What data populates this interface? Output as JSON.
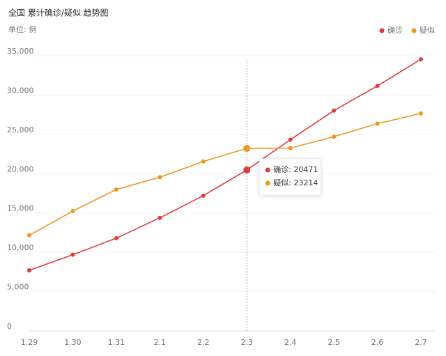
{
  "chart_data": {
    "type": "line",
    "title": "全国 累计确诊/疑似 趋势图",
    "unit_label": "单位: 例",
    "categories": [
      "1.29",
      "1.30",
      "1.31",
      "2.1",
      "2.2",
      "2.3",
      "2.4",
      "2.5",
      "2.6",
      "2.7"
    ],
    "series": [
      {
        "name": "确诊",
        "color": "#e03a3a",
        "values": [
          7711,
          9692,
          11791,
          14380,
          17205,
          20471,
          24324,
          28018,
          31161,
          34546
        ]
      },
      {
        "name": "疑似",
        "color": "#ef9520",
        "values": [
          12167,
          15238,
          17988,
          19544,
          21558,
          23214,
          23260,
          24702,
          26359,
          27657
        ]
      }
    ],
    "ylim": [
      0,
      35000
    ],
    "yticks": [
      0,
      {
        "value": 5000,
        "label": "5,000"
      },
      {
        "value": 10000,
        "label": "10,000"
      },
      {
        "value": 15000,
        "label": "15,000"
      },
      {
        "value": 20000,
        "label": "20,000"
      },
      {
        "value": 25000,
        "label": "25,000"
      },
      {
        "value": 30000,
        "label": "30,000"
      },
      {
        "value": 35000,
        "label": "35,000"
      }
    ],
    "grid": true,
    "legend": "top-right",
    "tooltip": {
      "index": 5,
      "lines": [
        "确诊: 20471",
        "疑似: 23214"
      ]
    }
  }
}
